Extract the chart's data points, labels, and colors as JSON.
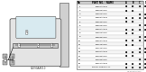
{
  "bg_color": "#ffffff",
  "rows": [
    [
      "1",
      "62090AA010",
      "b",
      "b",
      "b",
      "b"
    ],
    [
      "2",
      "62091FA010",
      "b",
      "b",
      "",
      ""
    ],
    [
      "3",
      "62092FA010",
      "",
      "",
      "b",
      "b"
    ],
    [
      "4",
      "62093AA010",
      "b",
      "b",
      "b",
      "b"
    ],
    [
      "5",
      "62094FA010",
      "b",
      "b",
      "",
      ""
    ],
    [
      "6",
      "62095FA010",
      "",
      "",
      "b",
      "b"
    ],
    [
      "7",
      "62096AA010",
      "b",
      "b",
      "b",
      "b"
    ],
    [
      "8",
      "62097FA010",
      "b",
      "b",
      "",
      ""
    ],
    [
      "9",
      "62098FA010",
      "",
      "",
      "b",
      "b"
    ],
    [
      "10",
      "62099AA010",
      "b",
      "b",
      "b",
      "b"
    ],
    [
      "11",
      "62100FA010",
      "b",
      "b",
      "",
      ""
    ],
    [
      "12",
      "62101FA010",
      "",
      "",
      "b",
      "b"
    ],
    [
      "13",
      "62102AA010",
      "b",
      "b",
      "b",
      "b"
    ],
    [
      "14",
      "62103FA010",
      "b",
      "b",
      "",
      ""
    ],
    [
      "15",
      "62104FA010",
      "",
      "",
      "b",
      "b"
    ],
    [
      "16",
      "62105AA010",
      "b",
      "b",
      "b",
      "b"
    ],
    [
      "17",
      "DOOR CHECK L.H.",
      "b",
      "b",
      "b",
      "b"
    ]
  ],
  "part_number_label": "62090AA010",
  "footer_text": "LB 6209A0A010",
  "col_headers": [
    "No",
    "PART NO. / NAME",
    "A",
    "B",
    "C",
    "D"
  ]
}
